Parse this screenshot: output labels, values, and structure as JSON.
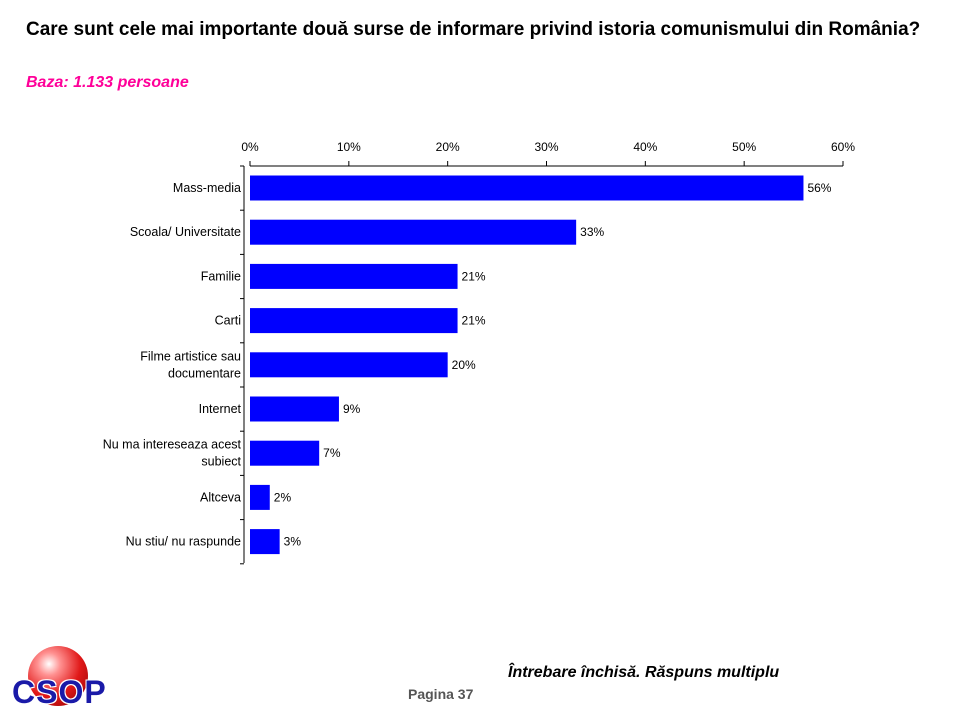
{
  "header": {
    "title": "Care sunt cele mai importante două surse de informare privind istoria comunismului din România?",
    "subtitle": "Baza: 1.133 persoane"
  },
  "footer": {
    "note": "Întrebare închisă. Răspuns multiplu",
    "page": "Pagina 37",
    "logo_text": "CSOP"
  },
  "colors": {
    "bar": "#0000ff",
    "subtitle": "#ff0099"
  },
  "chart_data": {
    "type": "bar",
    "orientation": "horizontal",
    "categories": [
      [
        "Mass-media"
      ],
      [
        "Scoala/ Universitate"
      ],
      [
        "Familie"
      ],
      [
        "Carti"
      ],
      [
        "Filme artistice sau",
        "documentare"
      ],
      [
        "Internet"
      ],
      [
        "Nu ma intereseaza acest",
        "subiect"
      ],
      [
        "Altceva"
      ],
      [
        "Nu stiu/ nu raspunde"
      ]
    ],
    "values": [
      56,
      33,
      21,
      21,
      20,
      9,
      7,
      2,
      3
    ],
    "value_labels": [
      "56%",
      "33%",
      "21%",
      "21%",
      "20%",
      "9%",
      "7%",
      "2%",
      "3%"
    ],
    "xlim": [
      0,
      60
    ],
    "xticks": [
      0,
      10,
      20,
      30,
      40,
      50,
      60
    ],
    "xtick_labels": [
      "0%",
      "10%",
      "20%",
      "30%",
      "40%",
      "50%",
      "60%"
    ],
    "axis_position": "top",
    "grid": false,
    "legend": "none"
  }
}
